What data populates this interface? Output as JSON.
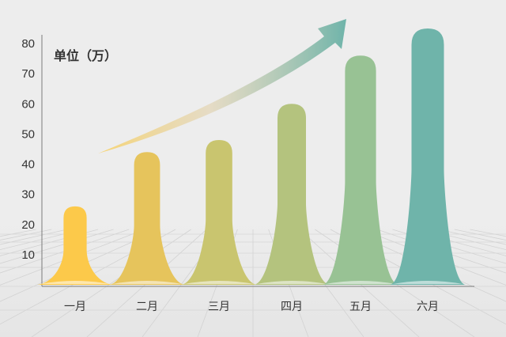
{
  "chart_data": {
    "type": "bar",
    "unit_label": "单位（万）",
    "categories": [
      "一月",
      "二月",
      "三月",
      "四月",
      "五月",
      "六月"
    ],
    "values": [
      26,
      44,
      48,
      60,
      76,
      85
    ],
    "ylim": [
      0,
      85
    ],
    "yticks": [
      "10",
      "20",
      "30",
      "40",
      "50",
      "60",
      "70",
      "80"
    ],
    "colors": [
      "#fcc94a",
      "#e6c45c",
      "#c9c56f",
      "#b4c37e",
      "#98c294",
      "#6fb4aa"
    ],
    "arrow_colors": [
      "#f8d060",
      "#6fb4aa"
    ],
    "grid": false
  }
}
